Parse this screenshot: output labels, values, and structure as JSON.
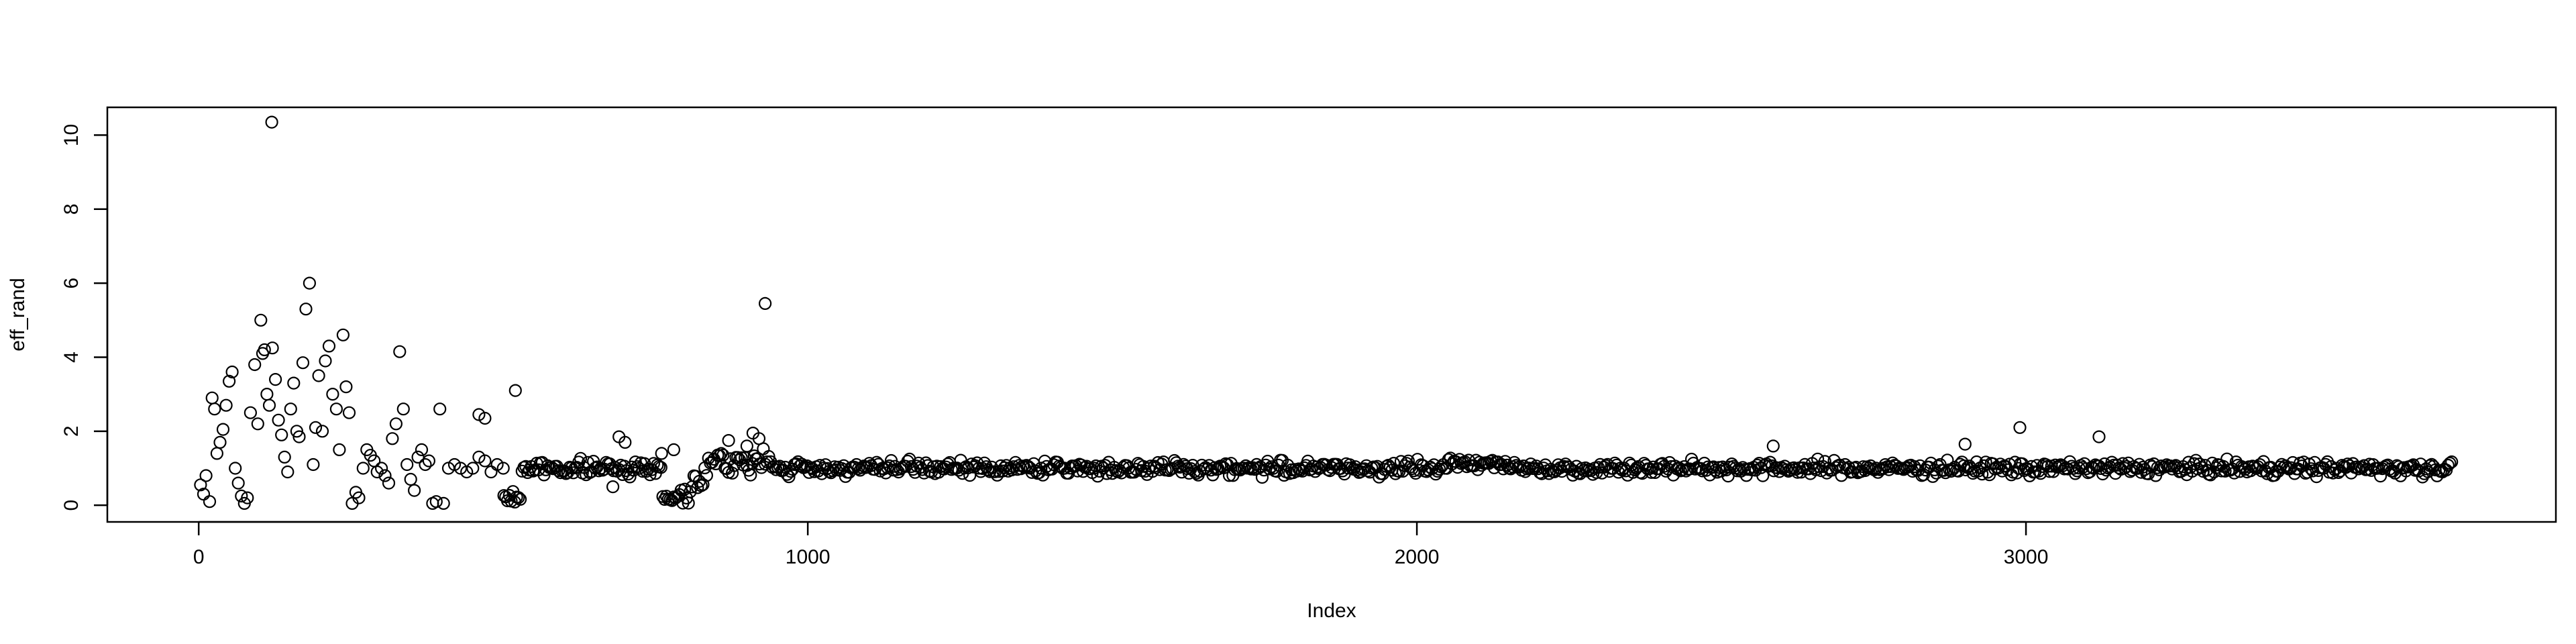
{
  "chart_data": {
    "type": "scatter",
    "title": "",
    "xlabel": "Index",
    "ylabel": "eff_rand",
    "xlim": [
      -150,
      3870
    ],
    "ylim": [
      -0.45,
      10.75
    ],
    "x_ticks": [
      0,
      1000,
      2000,
      3000
    ],
    "y_ticks": [
      0,
      2,
      4,
      6,
      8,
      10
    ],
    "grid": false,
    "legend": "none",
    "n_points": 3700,
    "marker": "open-circle",
    "marker_color": "#000000",
    "series": [
      {
        "points": [
          [
            3,
            0.55
          ],
          [
            8,
            0.3
          ],
          [
            12,
            0.8
          ],
          [
            18,
            0.1
          ],
          [
            22,
            2.9
          ],
          [
            26,
            2.6
          ],
          [
            30,
            1.4
          ],
          [
            35,
            1.7
          ],
          [
            40,
            2.05
          ],
          [
            45,
            2.7
          ],
          [
            50,
            3.35
          ],
          [
            55,
            3.6
          ],
          [
            60,
            1.0
          ],
          [
            65,
            0.6
          ],
          [
            70,
            0.25
          ],
          [
            75,
            0.05
          ],
          [
            80,
            0.2
          ],
          [
            85,
            2.5
          ],
          [
            92,
            3.8
          ],
          [
            97,
            2.2
          ],
          [
            102,
            5.0
          ],
          [
            105,
            4.1
          ],
          [
            108,
            4.2
          ],
          [
            112,
            3.0
          ],
          [
            116,
            2.7
          ],
          [
            121,
            4.25
          ],
          [
            126,
            3.4
          ],
          [
            131,
            2.3
          ],
          [
            136,
            1.9
          ],
          [
            141,
            1.3
          ],
          [
            146,
            0.9
          ],
          [
            151,
            2.6
          ],
          [
            156,
            3.3
          ],
          [
            161,
            2.0
          ],
          [
            165,
            1.85
          ],
          [
            171,
            3.85
          ],
          [
            176,
            5.3
          ],
          [
            182,
            6.0
          ],
          [
            188,
            1.1
          ],
          [
            192,
            2.1
          ],
          [
            197,
            3.5
          ],
          [
            203,
            2.0
          ],
          [
            208,
            3.9
          ],
          [
            214,
            4.3
          ],
          [
            220,
            3.0
          ],
          [
            226,
            2.6
          ],
          [
            231,
            1.5
          ],
          [
            237,
            4.6
          ],
          [
            242,
            3.2
          ],
          [
            247,
            2.5
          ],
          [
            252,
            0.05
          ],
          [
            258,
            0.35
          ],
          [
            263,
            0.2
          ],
          [
            270,
            1.0
          ],
          [
            276,
            1.5
          ],
          [
            282,
            1.35
          ],
          [
            288,
            1.2
          ],
          [
            293,
            0.9
          ],
          [
            300,
            1.0
          ],
          [
            306,
            0.8
          ],
          [
            312,
            0.6
          ],
          [
            318,
            1.8
          ],
          [
            324,
            2.2
          ],
          [
            330,
            4.15
          ],
          [
            336,
            2.6
          ],
          [
            342,
            1.1
          ],
          [
            348,
            0.7
          ],
          [
            354,
            0.4
          ],
          [
            360,
            1.3
          ],
          [
            366,
            1.5
          ],
          [
            372,
            1.1
          ],
          [
            378,
            1.2
          ],
          [
            384,
            0.05
          ],
          [
            390,
            0.1
          ],
          [
            396,
            2.6
          ],
          [
            402,
            0.05
          ],
          [
            410,
            1.0
          ],
          [
            420,
            1.1
          ],
          [
            430,
            1.0
          ],
          [
            440,
            0.9
          ],
          [
            450,
            1.0
          ],
          [
            460,
            1.3
          ],
          [
            470,
            1.2
          ],
          [
            480,
            0.9
          ],
          [
            490,
            1.1
          ],
          [
            500,
            1.0
          ],
          [
            120,
            10.35
          ],
          [
            930,
            5.45
          ],
          [
            520,
            3.1
          ],
          [
            460,
            2.45
          ],
          [
            470,
            2.35
          ],
          [
            2990,
            2.1
          ],
          [
            3120,
            1.85
          ],
          [
            2900,
            1.65
          ],
          [
            2585,
            1.6
          ],
          [
            690,
            1.85
          ],
          [
            700,
            1.7
          ],
          [
            680,
            0.5
          ],
          [
            760,
            1.4
          ],
          [
            780,
            1.5
          ],
          [
            870,
            1.75
          ],
          [
            900,
            1.6
          ],
          [
            910,
            1.95
          ],
          [
            920,
            1.8
          ]
        ]
      }
    ]
  }
}
